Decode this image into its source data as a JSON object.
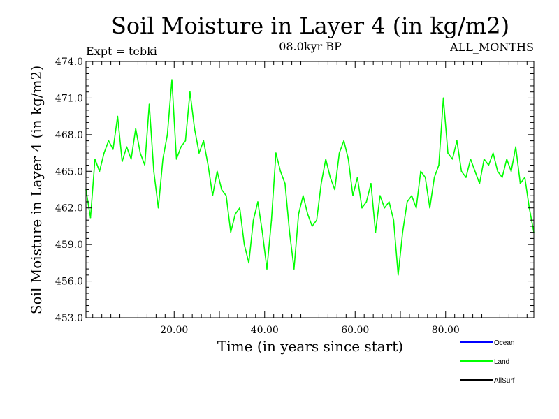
{
  "chart_data": {
    "type": "line",
    "title": "Soil Moisture in Layer 4 (in kg/m2)",
    "subtitle_left": "Expt = tebki",
    "subtitle_center": "08.0kyr BP",
    "subtitle_right": "ALL_MONTHS",
    "xlabel": "Time (in years since start)",
    "ylabel": "Soil Moisture in Layer 4 (in kg/m2)",
    "xlim": [
      0.5,
      99.5
    ],
    "ylim": [
      453.0,
      474.0
    ],
    "xticks": [
      20,
      40,
      60,
      80
    ],
    "xtick_labels": [
      "20.00",
      "40.00",
      "60.00",
      "80.00"
    ],
    "yticks": [
      453,
      456,
      459,
      462,
      465,
      468,
      471,
      474
    ],
    "ytick_labels": [
      "453.0",
      "456.0",
      "459.0",
      "462.0",
      "465.0",
      "468.0",
      "471.0",
      "474.0"
    ],
    "legend": {
      "placement": "bottom-right",
      "entries": [
        {
          "name": "Ocean",
          "color": "#0000ff"
        },
        {
          "name": "Land",
          "color": "#00ff00"
        },
        {
          "name": "AllSurf",
          "color": "#000000"
        }
      ]
    },
    "series": [
      {
        "name": "Land",
        "color": "#00ff00",
        "x": [
          0.5,
          1.5,
          2.5,
          3.5,
          4.5,
          5.5,
          6.5,
          7.5,
          8.5,
          9.5,
          10.5,
          11.5,
          12.5,
          13.5,
          14.5,
          15.5,
          16.5,
          17.5,
          18.5,
          19.5,
          20.5,
          21.5,
          22.5,
          23.5,
          24.5,
          25.5,
          26.5,
          27.5,
          28.5,
          29.5,
          30.5,
          31.5,
          32.5,
          33.5,
          34.5,
          35.5,
          36.5,
          37.5,
          38.5,
          39.5,
          40.5,
          41.5,
          42.5,
          43.5,
          44.5,
          45.5,
          46.5,
          47.5,
          48.5,
          49.5,
          50.5,
          51.5,
          52.5,
          53.5,
          54.5,
          55.5,
          56.5,
          57.5,
          58.5,
          59.5,
          60.5,
          61.5,
          62.5,
          63.5,
          64.5,
          65.5,
          66.5,
          67.5,
          68.5,
          69.5,
          70.5,
          71.5,
          72.5,
          73.5,
          74.5,
          75.5,
          76.5,
          77.5,
          78.5,
          79.5,
          80.5,
          81.5,
          82.5,
          83.5,
          84.5,
          85.5,
          86.5,
          87.5,
          88.5,
          89.5,
          90.5,
          91.5,
          92.5,
          93.5,
          94.5,
          95.5,
          96.5,
          97.5,
          98.5,
          99.5
        ],
        "values": [
          463.5,
          461.2,
          466.0,
          465.0,
          466.5,
          467.5,
          466.8,
          469.5,
          465.8,
          467.0,
          466.0,
          468.5,
          466.5,
          465.5,
          470.5,
          465.0,
          462.0,
          466.0,
          468.0,
          472.5,
          466.0,
          467.0,
          467.5,
          471.5,
          468.5,
          466.5,
          467.5,
          465.5,
          463.0,
          465.0,
          463.5,
          463.0,
          460.0,
          461.5,
          462.0,
          459.0,
          457.5,
          461.0,
          462.5,
          460.0,
          457.0,
          461.0,
          466.5,
          465.0,
          464.0,
          460.0,
          457.0,
          461.5,
          463.0,
          461.5,
          460.5,
          461.0,
          464.0,
          466.0,
          464.5,
          463.5,
          466.5,
          467.5,
          466.0,
          463.0,
          464.5,
          462.0,
          462.5,
          464.0,
          460.0,
          463.0,
          462.0,
          462.5,
          461.0,
          456.5,
          460.0,
          462.5,
          463.0,
          462.0,
          465.0,
          464.5,
          462.0,
          464.5,
          465.5,
          471.0,
          466.5,
          466.0,
          467.5,
          465.0,
          464.5,
          466.0,
          465.0,
          464.0,
          466.0,
          465.5,
          466.5,
          465.0,
          464.5,
          466.0,
          465.0,
          467.0,
          464.0,
          464.5,
          462.0,
          460.0
        ]
      }
    ]
  }
}
